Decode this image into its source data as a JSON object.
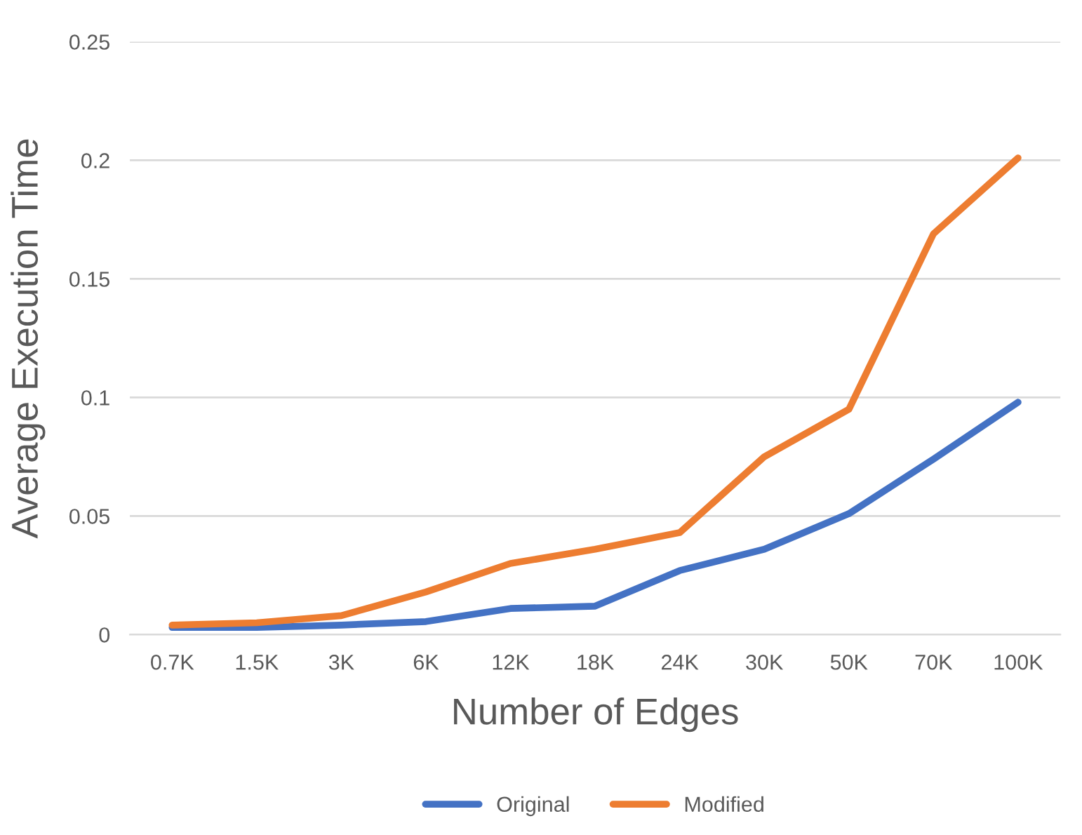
{
  "chart_data": {
    "type": "line",
    "xlabel": "Number of Edges",
    "ylabel": "Average Execution Time",
    "categories": [
      "0.7K",
      "1.5K",
      "3K",
      "6K",
      "12K",
      "18K",
      "24K",
      "30K",
      "50K",
      "70K",
      "100K"
    ],
    "series": [
      {
        "name": "Original",
        "color": "#4472c4",
        "values": [
          0.003,
          0.003,
          0.004,
          0.0055,
          0.011,
          0.012,
          0.027,
          0.036,
          0.051,
          0.074,
          0.098
        ]
      },
      {
        "name": "Modified",
        "color": "#ed7d31",
        "values": [
          0.004,
          0.005,
          0.008,
          0.018,
          0.03,
          0.036,
          0.043,
          0.075,
          0.095,
          0.169,
          0.201
        ]
      }
    ],
    "ylim": [
      0,
      0.25
    ],
    "yticks": [
      0,
      0.05,
      0.1,
      0.15,
      0.2,
      0.25
    ],
    "grid": "y",
    "legend": "bottom",
    "marker": "none",
    "line_style": "solid"
  }
}
